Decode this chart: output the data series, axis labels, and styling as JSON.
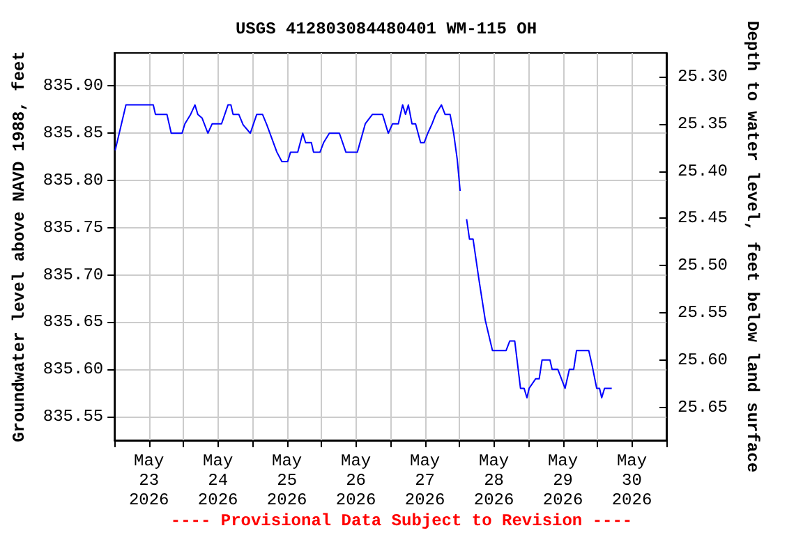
{
  "chart_data": {
    "type": "line",
    "title": "USGS 412803084480401 WM-115 OH",
    "ylabel": "Groundwater level above NAVD 1988, feet",
    "y2label": "Depth to water level, feet below land surface",
    "annotations": [
      "---- Provisional Data Subject to Revision ----"
    ],
    "x": [
      "2026-05-23T00:15",
      "2026-05-23T04:00",
      "2026-05-23T13:30",
      "2026-05-23T14:15",
      "2026-05-23T18:15",
      "2026-05-23T19:45",
      "2026-05-23T23:30",
      "2026-05-24T00:30",
      "2026-05-24T02:30",
      "2026-05-24T04:00",
      "2026-05-24T05:00",
      "2026-05-24T06:30",
      "2026-05-24T08:30",
      "2026-05-24T10:00",
      "2026-05-24T13:15",
      "2026-05-24T15:30",
      "2026-05-24T16:30",
      "2026-05-24T17:15",
      "2026-05-24T19:15",
      "2026-05-24T20:45",
      "2026-05-24T23:15",
      "2026-05-25T01:30",
      "2026-05-25T03:30",
      "2026-05-25T05:00",
      "2026-05-25T08:30",
      "2026-05-25T10:15",
      "2026-05-25T12:15",
      "2026-05-25T13:15",
      "2026-05-25T15:45",
      "2026-05-25T17:30",
      "2026-05-25T18:30",
      "2026-05-25T20:30",
      "2026-05-25T21:15",
      "2026-05-25T23:30",
      "2026-05-26T00:45",
      "2026-05-26T02:45",
      "2026-05-26T06:15",
      "2026-05-26T08:30",
      "2026-05-26T12:30",
      "2026-05-26T15:15",
      "2026-05-26T17:45",
      "2026-05-26T21:15",
      "2026-05-26T23:15",
      "2026-05-27T00:45",
      "2026-05-27T02:45",
      "2026-05-27T04:15",
      "2026-05-27T05:15",
      "2026-05-27T06:15",
      "2026-05-27T07:30",
      "2026-05-27T08:45",
      "2026-05-27T10:30",
      "2026-05-27T11:45",
      "2026-05-27T13:00",
      "2026-05-27T14:30",
      "2026-05-27T15:45",
      "2026-05-27T17:45",
      "2026-05-27T19:00",
      "2026-05-27T20:45",
      "2026-05-27T22:00",
      "2026-05-27T23:15",
      "2026-05-28T00:15",
      "2026-05-28T01:30",
      "2026-05-28T02:30",
      "2026-05-28T03:30",
      "2026-05-28T04:45",
      "2026-05-28T06:45",
      "2026-05-28T09:00",
      "2026-05-28T11:30",
      "2026-05-28T16:15",
      "2026-05-28T17:30",
      "2026-05-28T19:15",
      "2026-05-28T21:15",
      "2026-05-28T22:30",
      "2026-05-28T23:30",
      "2026-05-29T00:15",
      "2026-05-29T02:30",
      "2026-05-29T03:45",
      "2026-05-29T04:45",
      "2026-05-29T07:30",
      "2026-05-29T08:15",
      "2026-05-29T10:15",
      "2026-05-29T12:45",
      "2026-05-29T14:15",
      "2026-05-29T15:45",
      "2026-05-29T16:45",
      "2026-05-29T21:00",
      "2026-05-29T22:15",
      "2026-05-29T23:45",
      "2026-05-30T00:45",
      "2026-05-30T01:30",
      "2026-05-30T02:30",
      "2026-05-30T05:00"
    ],
    "series": [
      {
        "color": "#0000ff",
        "values": [
          835.832,
          835.88,
          835.88,
          835.87,
          835.87,
          835.85,
          835.85,
          835.86,
          835.87,
          835.88,
          835.87,
          835.866,
          835.85,
          835.86,
          835.86,
          835.88,
          835.88,
          835.87,
          835.87,
          835.859,
          835.85,
          835.87,
          835.87,
          835.859,
          835.83,
          835.82,
          835.82,
          835.83,
          835.83,
          835.85,
          835.84,
          835.84,
          835.83,
          835.83,
          835.84,
          835.85,
          835.85,
          835.83,
          835.83,
          835.86,
          835.87,
          835.87,
          835.85,
          835.86,
          835.86,
          835.88,
          835.87,
          835.88,
          835.86,
          835.86,
          835.84,
          835.84,
          835.85,
          835.86,
          835.87,
          835.88,
          835.87,
          835.87,
          835.85,
          835.822,
          835.789,
          null,
          835.759,
          835.738,
          835.738,
          835.696,
          835.652,
          835.62,
          835.62,
          835.63,
          835.63,
          835.58,
          835.58,
          835.57,
          835.58,
          835.59,
          835.59,
          835.61,
          835.61,
          835.6,
          835.6,
          835.58,
          835.6,
          835.6,
          835.62,
          835.62,
          835.603,
          835.58,
          835.58,
          835.57,
          835.58,
          835.58
        ]
      }
    ],
    "xlim": [
      "2026-05-23T00:00",
      "2026-05-31T00:00"
    ],
    "xticks": [
      {
        "value": "2026-05-23T00:00",
        "label": null
      },
      {
        "value": "2026-05-24T00:00",
        "label": null
      },
      {
        "value": "2026-05-25T00:00",
        "label": null
      },
      {
        "value": "2026-05-26T00:00",
        "label": null
      },
      {
        "value": "2026-05-27T00:00",
        "label": null
      },
      {
        "value": "2026-05-28T00:00",
        "label": null
      },
      {
        "value": "2026-05-29T00:00",
        "label": null
      },
      {
        "value": "2026-05-30T00:00",
        "label": null
      },
      {
        "value": "2026-05-31T00:00",
        "label": null
      },
      {
        "value": "2026-05-23T12:00",
        "label": "May 23 2026"
      },
      {
        "value": "2026-05-24T12:00",
        "label": "May 24 2026"
      },
      {
        "value": "2026-05-25T12:00",
        "label": "May 25 2026"
      },
      {
        "value": "2026-05-26T12:00",
        "label": "May 26 2026"
      },
      {
        "value": "2026-05-27T12:00",
        "label": "May 27 2026"
      },
      {
        "value": "2026-05-28T12:00",
        "label": "May 28 2026"
      },
      {
        "value": "2026-05-29T12:00",
        "label": "May 29 2026"
      },
      {
        "value": "2026-05-30T12:00",
        "label": "May 30 2026"
      }
    ],
    "ylim": [
      835.525,
      835.935
    ],
    "yticks": [
      {
        "value": 835.55,
        "label": "835.55"
      },
      {
        "value": 835.6,
        "label": "835.60"
      },
      {
        "value": 835.65,
        "label": "835.65"
      },
      {
        "value": 835.7,
        "label": "835.70"
      },
      {
        "value": 835.75,
        "label": "835.75"
      },
      {
        "value": 835.8,
        "label": "835.80"
      },
      {
        "value": 835.85,
        "label": "835.85"
      },
      {
        "value": 835.9,
        "label": "835.90"
      }
    ],
    "y2lim": [
      25.685,
      25.275
    ],
    "y2ticks": [
      {
        "value": 25.3,
        "label": "25.30"
      },
      {
        "value": 25.35,
        "label": "25.35"
      },
      {
        "value": 25.4,
        "label": "25.40"
      },
      {
        "value": 25.45,
        "label": "25.45"
      },
      {
        "value": 25.5,
        "label": "25.50"
      },
      {
        "value": 25.55,
        "label": "25.55"
      },
      {
        "value": 25.6,
        "label": "25.60"
      },
      {
        "value": 25.65,
        "label": "25.65"
      }
    ],
    "grid": true,
    "marker": "none",
    "line_style": "solid"
  }
}
